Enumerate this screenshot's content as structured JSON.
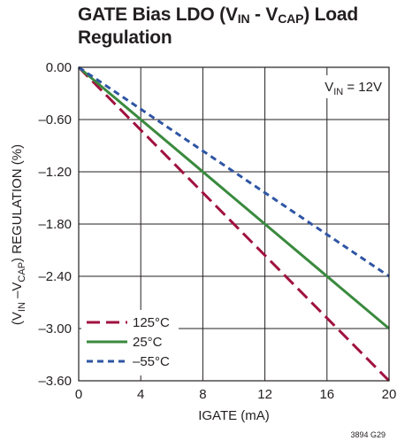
{
  "chart_data": {
    "type": "line",
    "title": {
      "part1": "GATE Bias LDO (V",
      "sub1": "IN",
      "part2": " - V",
      "sub2": "CAP",
      "part3": ") Load",
      "line2": "Regulation"
    },
    "xlabel": "IGATE (mA)",
    "ylabel": {
      "part1": "(V",
      "sub1": "IN",
      "part2": " –V",
      "sub2": "CAP",
      "part3": ") REGULATION (%)"
    },
    "xlim": [
      0,
      20
    ],
    "ylim": [
      -3.6,
      0
    ],
    "x_ticks": [
      0,
      4,
      8,
      12,
      16,
      20
    ],
    "x_tick_labels": [
      "0",
      "4",
      "8",
      "12",
      "16",
      "20"
    ],
    "y_ticks": [
      0,
      -0.6,
      -1.2,
      -1.8,
      -2.4,
      -3.0,
      -3.6
    ],
    "y_tick_labels": [
      "0.00",
      "–0.60",
      "–1.20",
      "–1.80",
      "–2.40",
      "–3.00",
      "–3.60"
    ],
    "grid": true,
    "legend_position": "bottom-left",
    "annotation": {
      "part1": "V",
      "sub": "IN",
      "part2": " = 12V"
    },
    "figure_code": "3894 G29",
    "series": [
      {
        "name": "125°C",
        "color": "#a0123f",
        "dash": "long-dash",
        "x": [
          0,
          20
        ],
        "y": [
          0,
          -3.6
        ]
      },
      {
        "name": "25°C",
        "color": "#3a8a3e",
        "dash": "solid",
        "x": [
          0,
          20
        ],
        "y": [
          0,
          -3.0
        ]
      },
      {
        "name": "–55°C",
        "color": "#2f55a4",
        "dash": "short-dash",
        "x": [
          0,
          20
        ],
        "y": [
          0,
          -2.4
        ]
      }
    ]
  }
}
